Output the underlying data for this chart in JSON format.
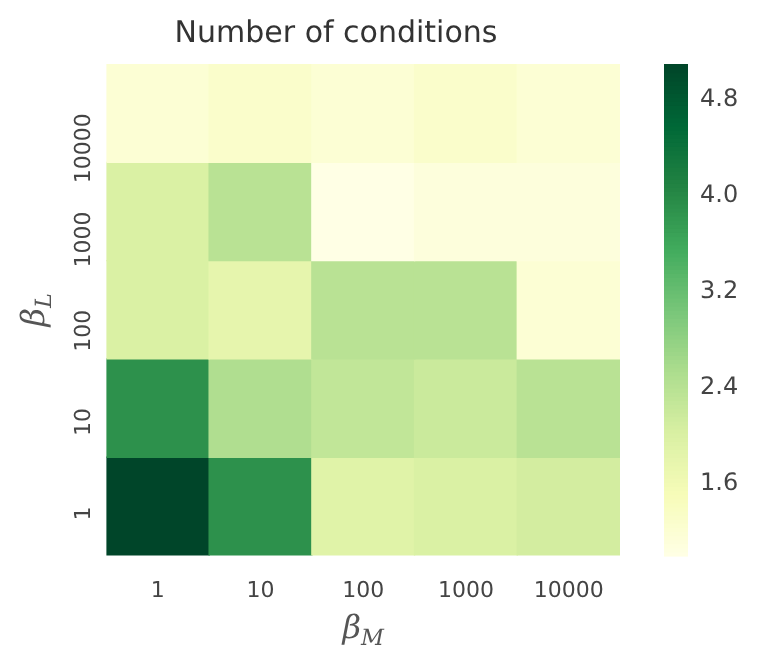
{
  "chart_data": {
    "type": "heatmap",
    "title": "Number of conditions",
    "xlabel": "β$_{M}$",
    "ylabel": "β$_{L}$",
    "categories": [
      "1",
      "10",
      "100",
      "1000",
      "10000"
    ],
    "y_categories": [
      "10000",
      "1000",
      "100",
      "10",
      "1"
    ],
    "cells": [
      [
        1.2,
        1.3,
        1.2,
        1.3,
        1.2
      ],
      [
        2.0,
        2.4,
        1.0,
        1.1,
        1.1
      ],
      [
        2.0,
        1.8,
        2.4,
        2.4,
        1.2
      ],
      [
        3.9,
        2.5,
        2.3,
        2.2,
        2.4
      ],
      [
        5.1,
        3.9,
        1.9,
        2.0,
        2.1
      ]
    ],
    "clim": [
      1.0,
      5.1
    ],
    "cticks": [
      1.6,
      2.4,
      3.2,
      {
        "value": 4,
        "label": "4.0"
      },
      4.8
    ]
  }
}
